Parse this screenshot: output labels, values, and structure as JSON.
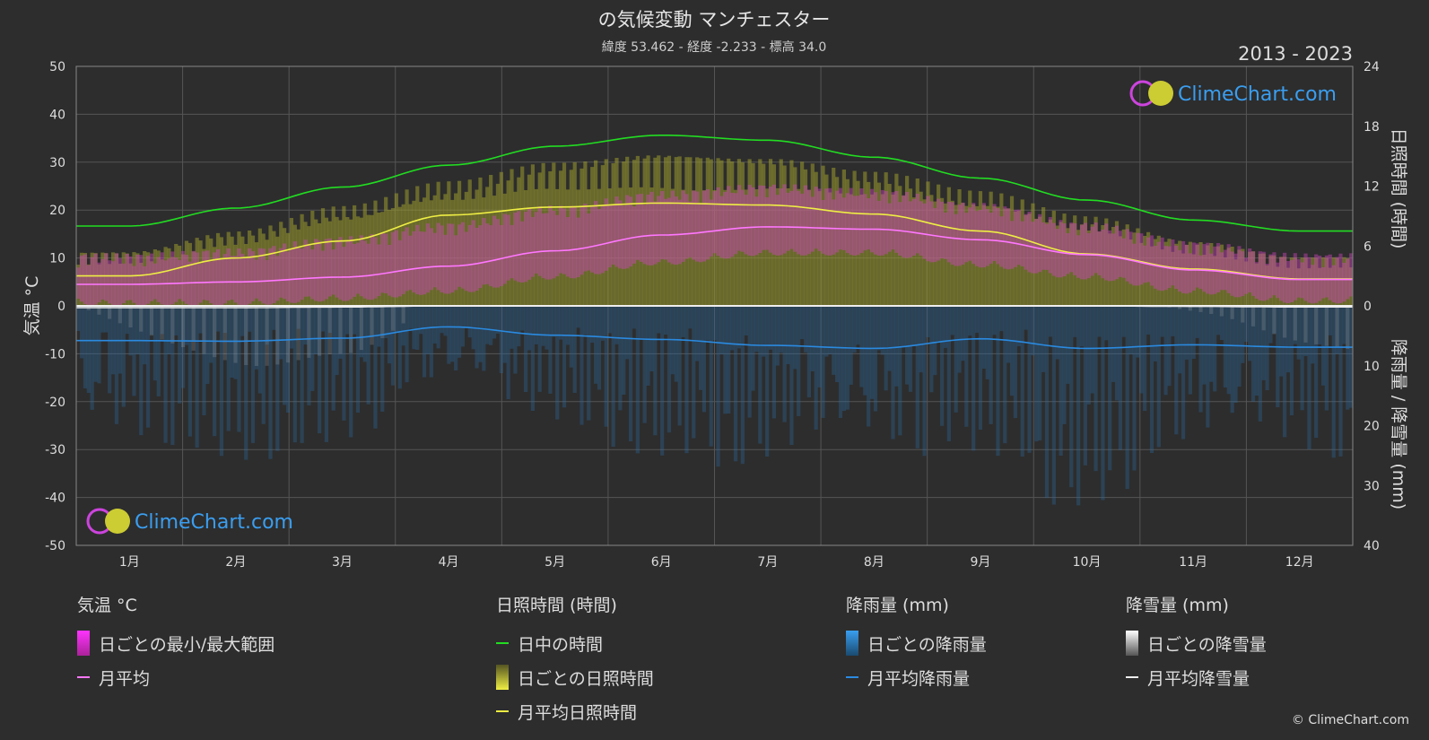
{
  "header": {
    "title": "の気候変動 マンチェスター",
    "subtitle": "緯度 53.462 - 経度 -2.233 - 標高 34.0",
    "year_range": "2013 - 2023"
  },
  "brand": {
    "name": "ClimeChart.com",
    "copyright": "© ClimeChart.com"
  },
  "colors": {
    "background": "#2d2d2d",
    "daylight": "#22dd22",
    "sunshine_line": "#eeee44",
    "sunshine_bar": "#9a9a2e",
    "temp_range": "#cc44bb",
    "temp_mean": "#ff77ff",
    "rain_line": "#2a8ae0",
    "rain_bar": "#2c6aa0",
    "snow_bar": "#cccccc",
    "snow_line": "#eeeeee",
    "brand_blue": "#3a9ef0"
  },
  "chart_data": {
    "type": "line",
    "title": "の気候変動 マンチェスター",
    "categories": [
      "1月",
      "2月",
      "3月",
      "4月",
      "5月",
      "6月",
      "7月",
      "8月",
      "9月",
      "10月",
      "11月",
      "12月"
    ],
    "x": [
      "1月",
      "2月",
      "3月",
      "4月",
      "5月",
      "6月",
      "7月",
      "8月",
      "9月",
      "10月",
      "11月",
      "12月"
    ],
    "axes": {
      "left": {
        "label": "気温 °C",
        "range": [
          -50,
          50
        ],
        "ticks": [
          50,
          40,
          30,
          20,
          10,
          0,
          -10,
          -20,
          -30,
          -40,
          -50
        ]
      },
      "right_top": {
        "label": "日照時間 (時間)",
        "range": [
          0,
          24
        ],
        "ticks": [
          24,
          18,
          12,
          6,
          0
        ]
      },
      "right_bottom": {
        "label": "降雨量 / 降雪量 (mm)",
        "range": [
          0,
          40
        ],
        "ticks": [
          0,
          10,
          20,
          30,
          40
        ]
      }
    },
    "grid": true,
    "series": [
      {
        "name": "日中の時間",
        "axis": "right_top",
        "values": [
          8.0,
          9.8,
          11.9,
          14.1,
          16.0,
          17.1,
          16.6,
          14.9,
          12.8,
          10.6,
          8.6,
          7.5
        ]
      },
      {
        "name": "月平均日照時間",
        "axis": "right_top",
        "values": [
          3.0,
          4.8,
          6.5,
          9.1,
          9.9,
          10.3,
          10.1,
          9.2,
          7.5,
          5.2,
          3.7,
          2.7
        ]
      },
      {
        "name": "月平均",
        "axis": "left",
        "values": [
          4.5,
          5.0,
          6.0,
          8.3,
          11.5,
          14.8,
          16.5,
          16.0,
          13.8,
          10.7,
          7.5,
          5.5
        ]
      },
      {
        "name": "月平均降雨量",
        "axis": "right_bottom",
        "values": [
          5.8,
          5.9,
          5.4,
          3.5,
          4.9,
          5.6,
          6.6,
          7.1,
          5.5,
          7.1,
          6.5,
          6.9
        ]
      },
      {
        "name": "月平均降雪量",
        "axis": "right_bottom",
        "values": [
          0.3,
          0.3,
          0.2,
          0.0,
          0.0,
          0.0,
          0.0,
          0.0,
          0.0,
          0.0,
          0.1,
          0.2
        ]
      }
    ],
    "daily_temp_range_monthly": {
      "min": [
        1.5,
        1.5,
        2.5,
        4.0,
        7.0,
        10.0,
        12.0,
        12.0,
        9.5,
        7.0,
        4.0,
        2.0
      ],
      "max": [
        8.0,
        9.0,
        11.5,
        14.5,
        18.0,
        21.0,
        22.5,
        21.5,
        18.5,
        14.5,
        10.5,
        8.0
      ]
    },
    "daily_sunshine_max_monthly": [
      5.5,
      7.5,
      10.0,
      12.5,
      14.5,
      15.5,
      15.0,
      13.5,
      11.5,
      9.0,
      6.5,
      5.0
    ],
    "daily_rain_max_monthly": [
      28,
      26,
      24,
      18,
      22,
      25,
      30,
      32,
      26,
      34,
      30,
      30
    ]
  },
  "legend": {
    "groups": [
      {
        "title": "気温 °C",
        "items": [
          {
            "label": "日ごとの最小/最大範囲",
            "swatch": "temp-range"
          },
          {
            "label": "月平均",
            "swatch": "temp-mean"
          }
        ]
      },
      {
        "title": "日照時間 (時間)",
        "items": [
          {
            "label": "日中の時間",
            "swatch": "daylight"
          },
          {
            "label": "日ごとの日照時間",
            "swatch": "sunshine-bar"
          },
          {
            "label": "月平均日照時間",
            "swatch": "sunshine-line"
          }
        ]
      },
      {
        "title": "降雨量 (mm)",
        "items": [
          {
            "label": "日ごとの降雨量",
            "swatch": "rain-bar"
          },
          {
            "label": "月平均降雨量",
            "swatch": "rain-line"
          }
        ]
      },
      {
        "title": "降雪量 (mm)",
        "items": [
          {
            "label": "日ごとの降雪量",
            "swatch": "snow-bar"
          },
          {
            "label": "月平均降雪量",
            "swatch": "snow-line"
          }
        ]
      }
    ]
  }
}
